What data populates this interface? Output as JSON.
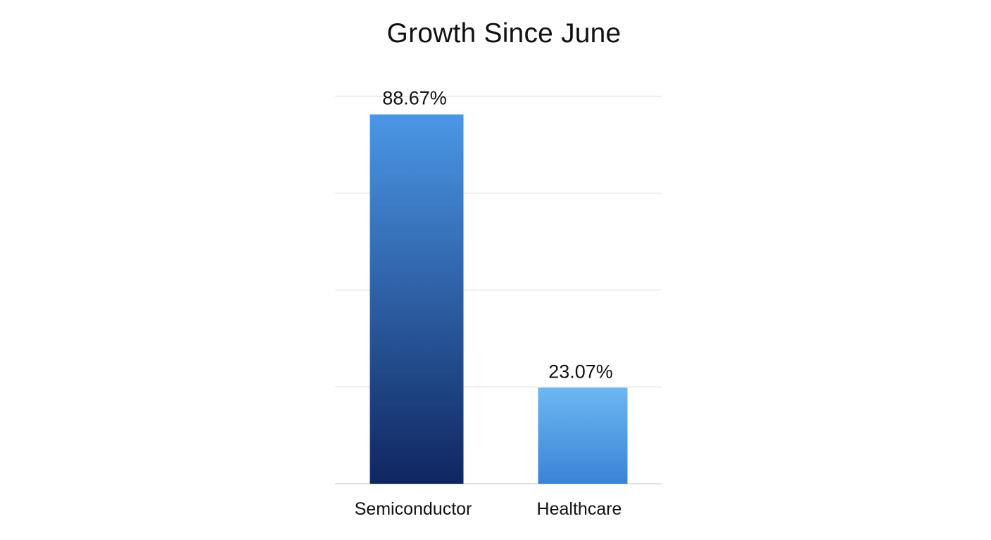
{
  "chart_data": {
    "type": "bar",
    "title": "Growth Since June",
    "categories": [
      "Semiconductor",
      "Healthcare"
    ],
    "values": [
      88.67,
      23.07
    ],
    "data_labels": [
      "88.67%",
      "23.07%"
    ],
    "unit": "%",
    "ylim": [
      0,
      93
    ],
    "ygrid": [
      0,
      23.25,
      46.5,
      69.75,
      93
    ],
    "grid": true,
    "legend": "none",
    "bar_gradients": [
      {
        "top": "#4b97e6",
        "bottom": "#0f2660"
      },
      {
        "top": "#6db7f2",
        "bottom": "#3a83d6"
      }
    ]
  }
}
